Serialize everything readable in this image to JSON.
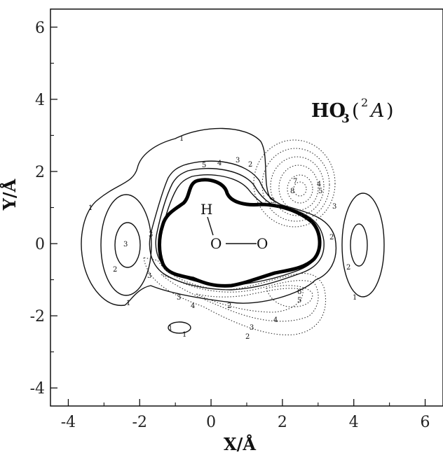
{
  "chart_data": {
    "type": "contour",
    "xlabel": "X/Å",
    "ylabel": "Y/Å",
    "xlim": [
      -4.5,
      6.5
    ],
    "ylim": [
      -4.5,
      6.5
    ],
    "x_ticks": [
      -4,
      -2,
      0,
      2,
      4,
      6
    ],
    "y_ticks": [
      -4,
      -2,
      0,
      2,
      4,
      6
    ],
    "x_tick_labels": [
      "-4",
      "-2",
      "0",
      "2",
      "4",
      "6"
    ],
    "y_tick_labels": [
      "-4",
      "-2",
      "0",
      "2",
      "4",
      "6"
    ],
    "annotation": {
      "main": "HO",
      "subscript": "3",
      "state_open": "(",
      "state_sup": "2",
      "state_sym": "A",
      "state_close": ")"
    },
    "atoms": [
      {
        "label": "H",
        "x": -0.2,
        "y": 1.0
      },
      {
        "label": "O",
        "x": 0.1,
        "y": 0.0
      },
      {
        "label": "O",
        "x": 1.3,
        "y": 0.0
      }
    ],
    "contour_level_labels": {
      "solid": [
        "1",
        "2",
        "3",
        "4",
        "5"
      ],
      "dotted": [
        "1",
        "2",
        "3",
        "4",
        "5",
        "6",
        "7",
        "8"
      ]
    },
    "grid": false
  }
}
